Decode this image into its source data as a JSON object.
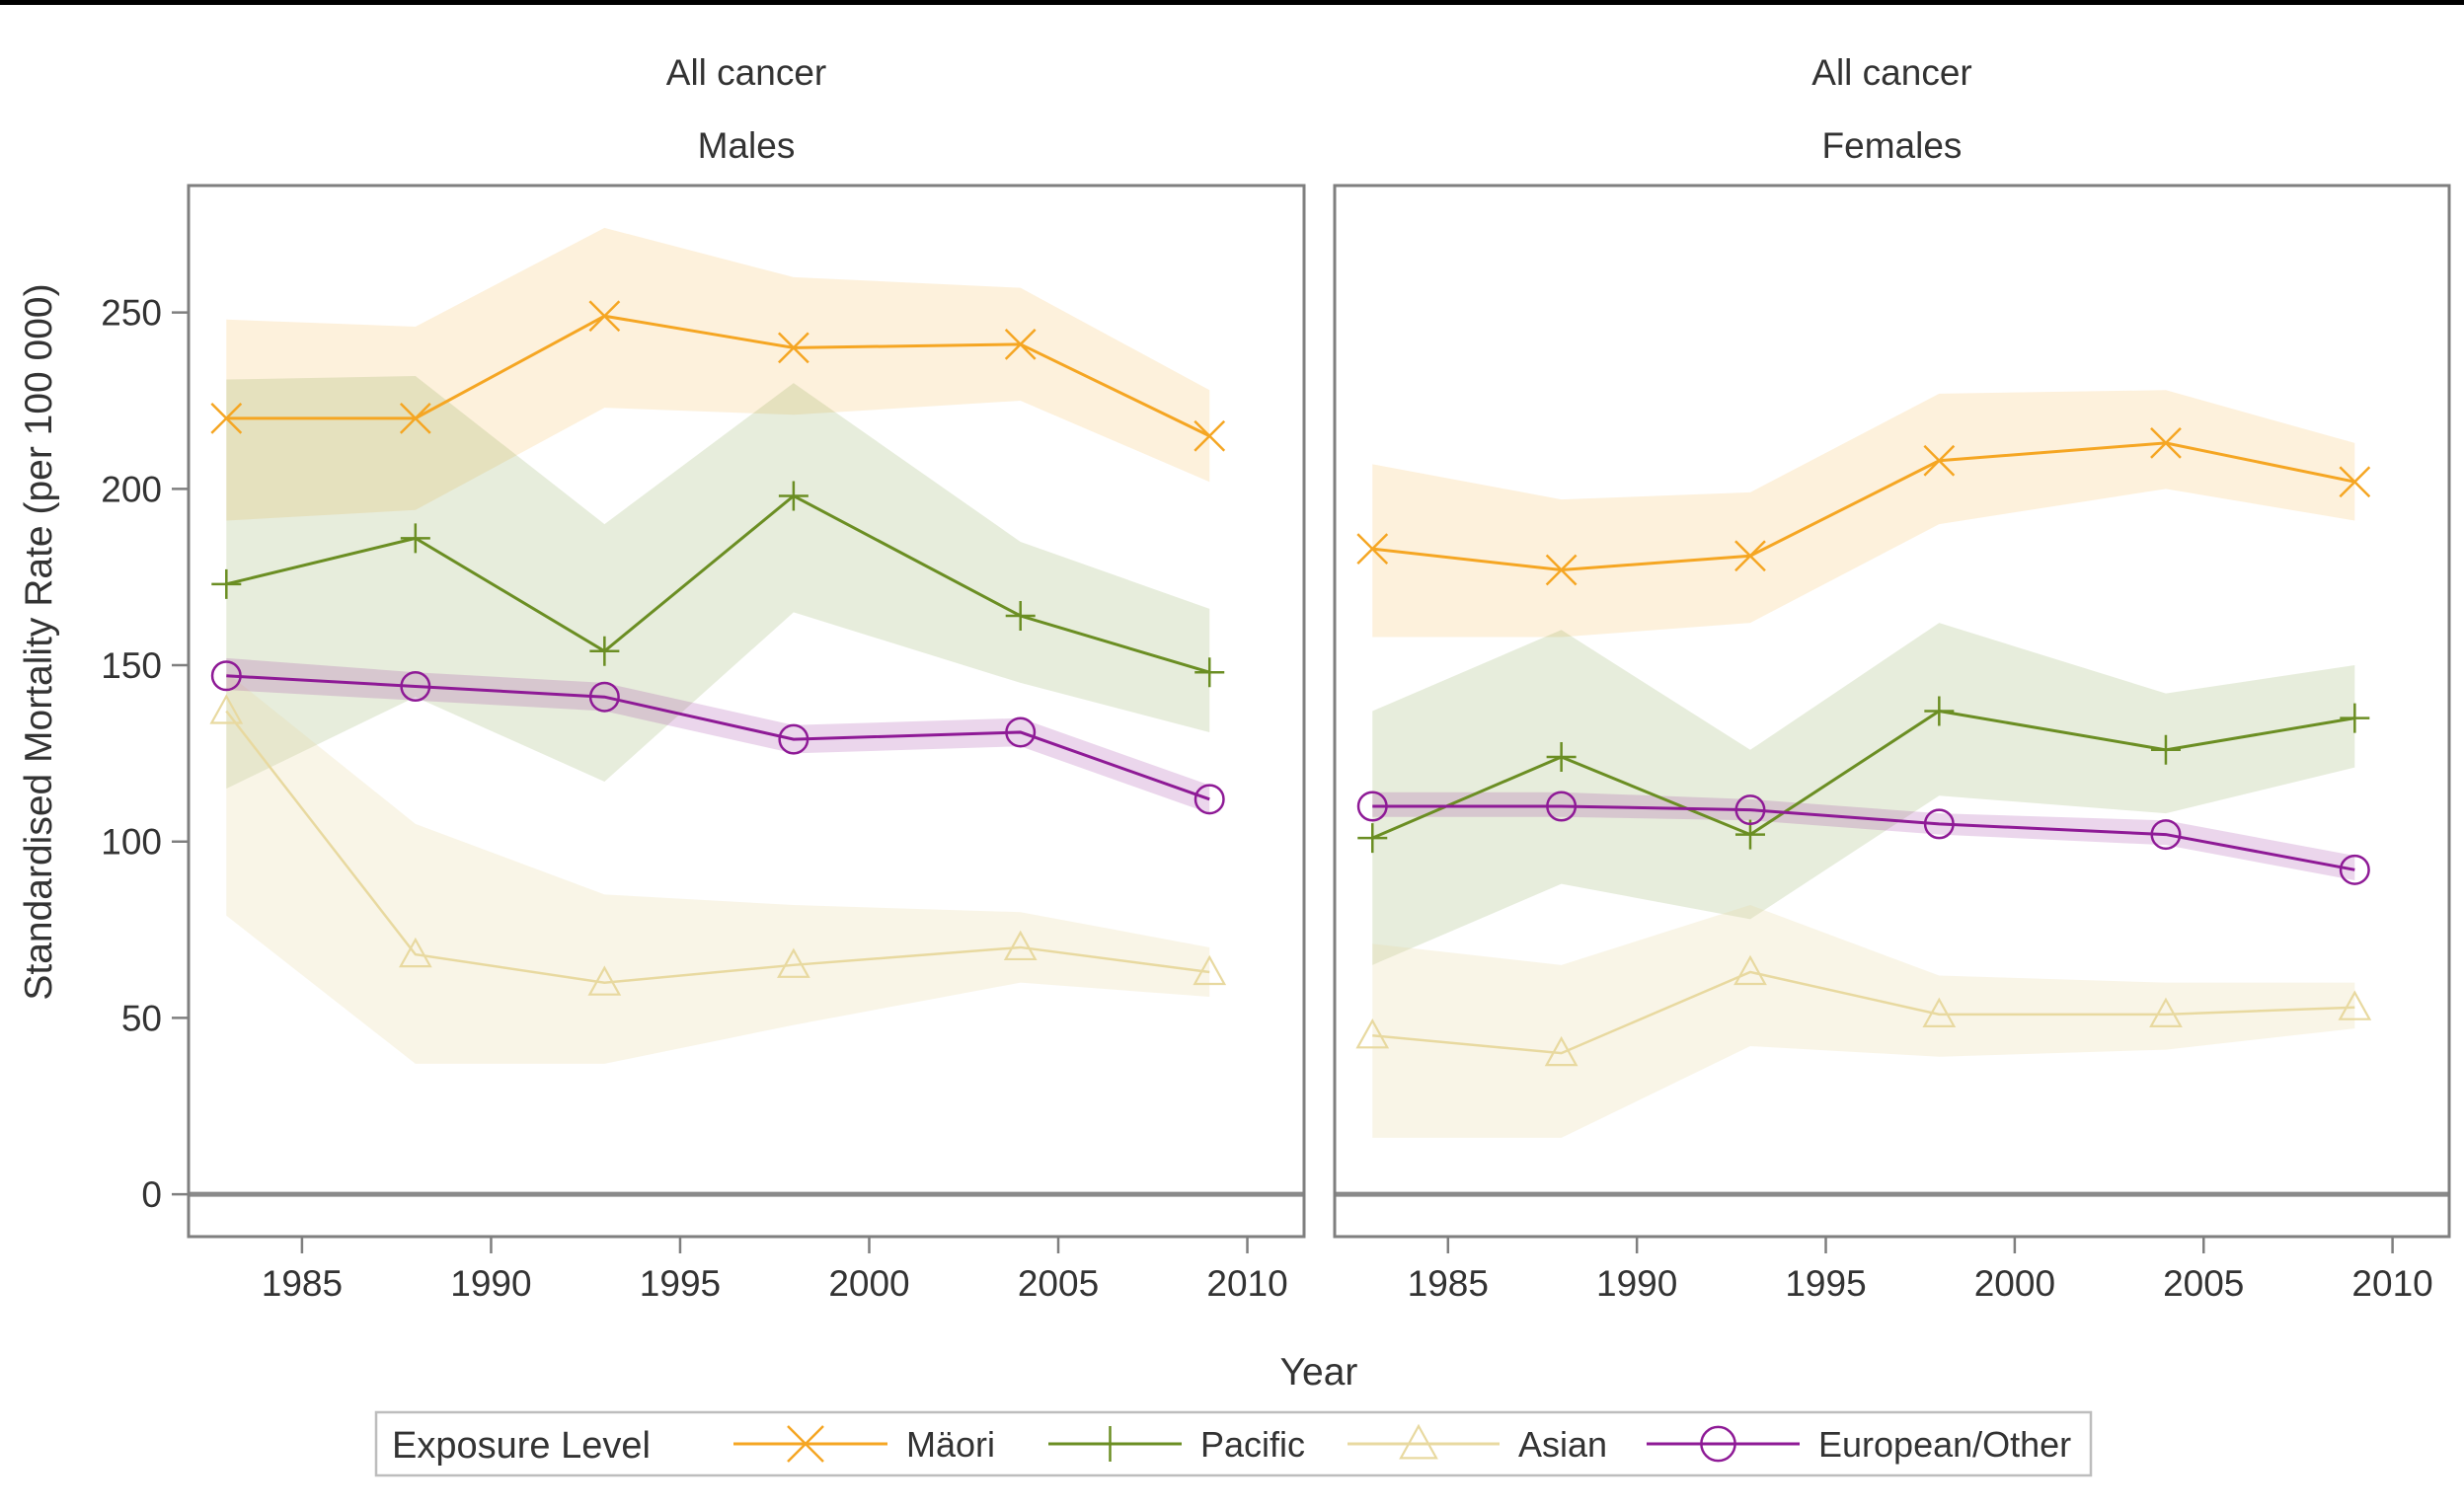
{
  "chart_data": {
    "type": "line",
    "panel_titles": [
      [
        "All cancer",
        "Males"
      ],
      [
        "All cancer",
        "Females"
      ]
    ],
    "xlabel": "Year",
    "ylabel": "Standardised Mortality Rate (per 100 000)",
    "xlim": [
      1982,
      2011.5
    ],
    "ylim": [
      -12,
      286
    ],
    "xticks": [
      1985,
      1990,
      1995,
      2000,
      2005,
      2010
    ],
    "yticks": [
      0,
      50,
      100,
      150,
      200,
      250
    ],
    "grid": false,
    "reference_line_y": 0,
    "legend": {
      "title": "Exposure Level",
      "position": "bottom"
    },
    "series_styles": [
      {
        "name": "Mäori",
        "color": "#f5a623",
        "marker": "x"
      },
      {
        "name": "Pacific",
        "color": "#6b8e23",
        "marker": "plus"
      },
      {
        "name": "Asian",
        "color": "#e8d9a0",
        "marker": "triangle"
      },
      {
        "name": "European/Other",
        "color": "#8e1a96",
        "marker": "circle"
      }
    ],
    "panels": [
      {
        "title": "All cancer Males",
        "x": [
          1983,
          1988,
          1993,
          1998,
          2004,
          2009
        ],
        "series": [
          {
            "name": "Mäori",
            "values": [
              220,
              220,
              249,
              240,
              241,
              215
            ],
            "lower": [
              191,
              194,
              223,
              221,
              225,
              202
            ],
            "upper": [
              248,
              246,
              274,
              260,
              257,
              228
            ]
          },
          {
            "name": "Pacific",
            "values": [
              173,
              186,
              154,
              198,
              164,
              148
            ],
            "lower": [
              115,
              141,
              117,
              165,
              145,
              131
            ],
            "upper": [
              231,
              232,
              190,
              230,
              185,
              166
            ]
          },
          {
            "name": "Asian",
            "values": [
              137,
              68,
              60,
              65,
              70,
              63
            ],
            "lower": [
              79,
              37,
              37,
              48,
              60,
              56
            ],
            "upper": [
              148,
              105,
              85,
              82,
              80,
              70
            ]
          },
          {
            "name": "European/Other",
            "values": [
              147,
              144,
              141,
              129,
              131,
              112
            ],
            "lower": [
              143,
              140,
              137,
              125,
              127,
              108
            ],
            "upper": [
              152,
              148,
              145,
              133,
              135,
              116
            ]
          }
        ]
      },
      {
        "title": "All cancer Females",
        "x": [
          1983,
          1988,
          1993,
          1998,
          2004,
          2009
        ],
        "series": [
          {
            "name": "Mäori",
            "values": [
              183,
              177,
              181,
              208,
              213,
              202
            ],
            "lower": [
              158,
              158,
              162,
              190,
              200,
              191
            ],
            "upper": [
              207,
              197,
              199,
              227,
              228,
              213
            ]
          },
          {
            "name": "Pacific",
            "values": [
              101,
              124,
              102,
              137,
              126,
              135
            ],
            "lower": [
              65,
              88,
              78,
              113,
              108,
              121
            ],
            "upper": [
              137,
              160,
              126,
              162,
              142,
              150
            ]
          },
          {
            "name": "Asian",
            "values": [
              45,
              40,
              63,
              51,
              51,
              53
            ],
            "lower": [
              16,
              16,
              42,
              39,
              41,
              47
            ],
            "upper": [
              71,
              65,
              82,
              62,
              60,
              60
            ]
          },
          {
            "name": "European/Other",
            "values": [
              110,
              110,
              109,
              105,
              102,
              92
            ],
            "lower": [
              107,
              107,
              106,
              102,
              99,
              89
            ],
            "upper": [
              114,
              114,
              112,
              108,
              106,
              96
            ]
          }
        ]
      }
    ]
  }
}
